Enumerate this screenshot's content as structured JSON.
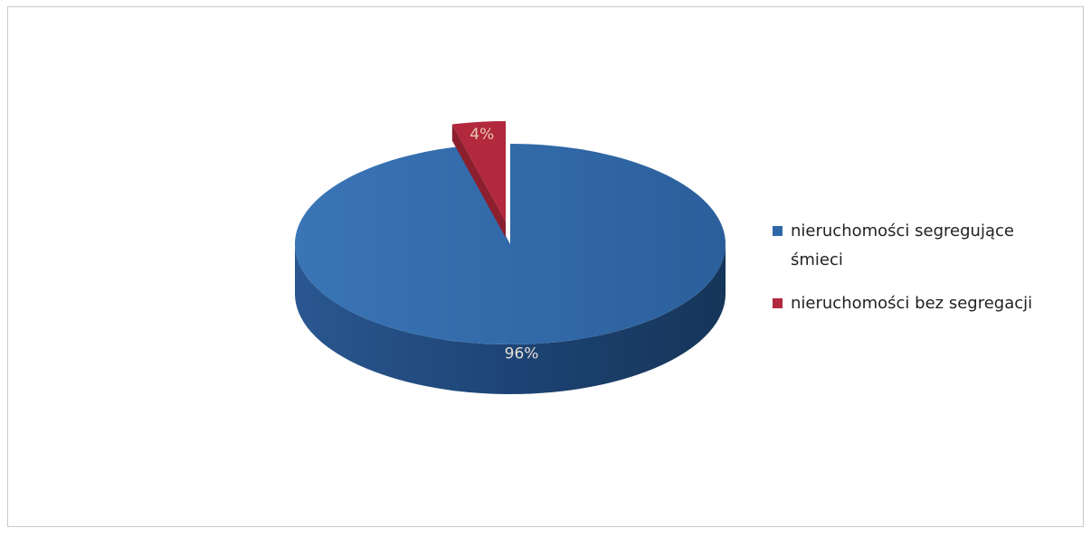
{
  "chart_data": {
    "type": "pie",
    "three_d": true,
    "legend_position": "right",
    "slices": [
      {
        "name": "nieruchomości segregujące śmieci",
        "value": 96,
        "label": "96%",
        "color": "#2f67a6",
        "exploded": false
      },
      {
        "name": "nieruchomości bez segregacji",
        "value": 4,
        "label": "4%",
        "color": "#b2283c",
        "exploded": true
      }
    ]
  }
}
